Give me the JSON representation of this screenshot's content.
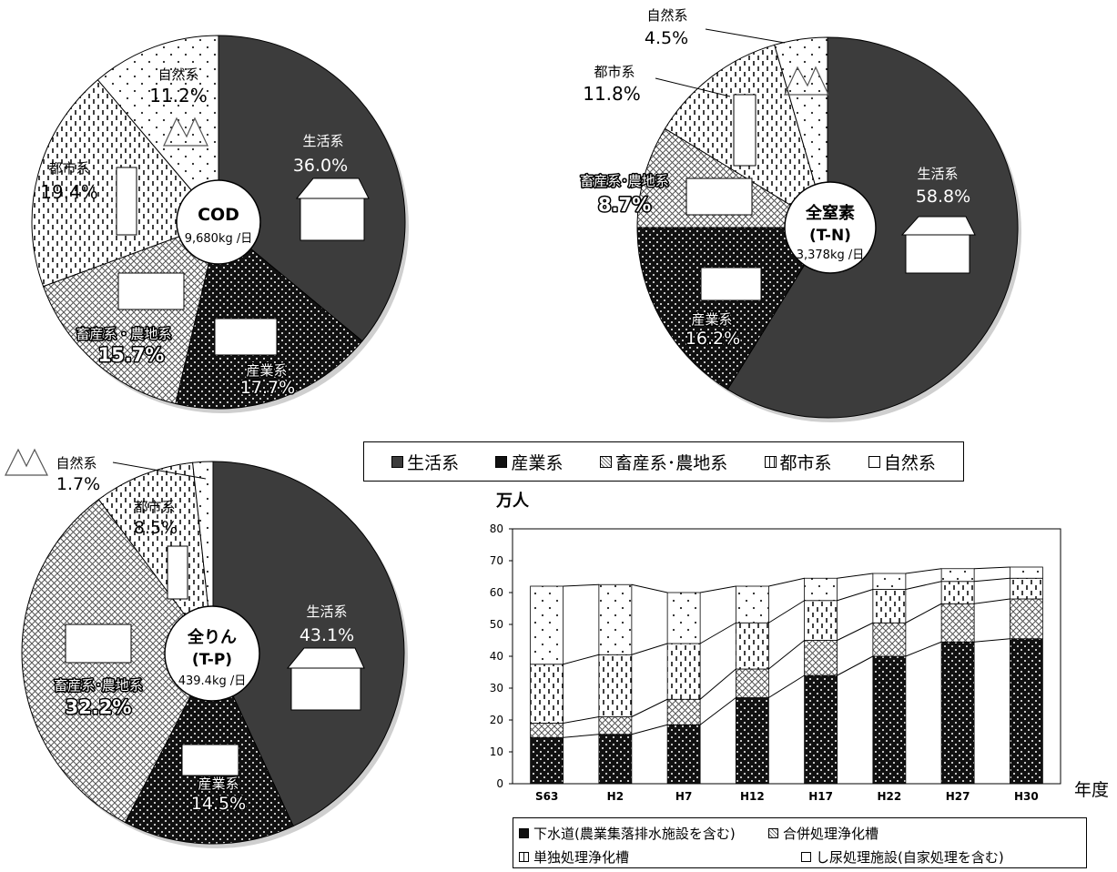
{
  "legend": {
    "items": [
      {
        "label": "生活系",
        "key": "seikatsu"
      },
      {
        "label": "産業系",
        "key": "sangyo"
      },
      {
        "label": "畜産系･農地系",
        "key": "chikusan"
      },
      {
        "label": "都市系",
        "key": "toshi"
      },
      {
        "label": "自然系",
        "key": "shizen"
      }
    ]
  },
  "chart_data": [
    {
      "type": "pie",
      "title": "COD",
      "subtitle": "9,680kg /日",
      "slices": [
        {
          "label": "生活系",
          "value": 36.0,
          "text": "36.0%"
        },
        {
          "label": "産業系",
          "value": 17.7,
          "text": "17.7%"
        },
        {
          "label": "畜産系・農地系",
          "value": 15.7,
          "text": "15.7%"
        },
        {
          "label": "都市系",
          "value": 19.4,
          "text": "19.4%"
        },
        {
          "label": "自然系",
          "value": 11.2,
          "text": "11.2%"
        }
      ]
    },
    {
      "type": "pie",
      "title": "全窒素",
      "title2": "(T-N)",
      "subtitle": "3,378kg /日",
      "slices": [
        {
          "label": "生活系",
          "value": 58.8,
          "text": "58.8%"
        },
        {
          "label": "産業系",
          "value": 16.2,
          "text": "16.2%"
        },
        {
          "label": "畜産系･農地系",
          "value": 8.7,
          "text": "8.7%"
        },
        {
          "label": "都市系",
          "value": 11.8,
          "text": "11.8%"
        },
        {
          "label": "自然系",
          "value": 4.5,
          "text": "4.5%"
        }
      ]
    },
    {
      "type": "pie",
      "title": "全りん",
      "title2": "(T-P)",
      "subtitle": "439.4kg /日",
      "slices": [
        {
          "label": "生活系",
          "value": 43.1,
          "text": "43.1%"
        },
        {
          "label": "産業系",
          "value": 14.5,
          "text": "14.5%"
        },
        {
          "label": "畜産系･農地系",
          "value": 32.2,
          "text": "32.2%"
        },
        {
          "label": "都市系",
          "value": 8.5,
          "text": "8.5%"
        },
        {
          "label": "自然系",
          "value": 1.7,
          "text": "1.7%"
        }
      ]
    },
    {
      "type": "bar",
      "stacked": true,
      "ylabel": "万人",
      "xlabel": "年度",
      "ylim": [
        0,
        80
      ],
      "yticks": [
        0,
        10,
        20,
        30,
        40,
        50,
        60,
        70,
        80
      ],
      "categories": [
        "S63",
        "H2",
        "H7",
        "H12",
        "H17",
        "H22",
        "H27",
        "H30"
      ],
      "series": [
        {
          "name": "下水道(農業集落排水施設を含む)",
          "values": [
            14.5,
            15.5,
            18.5,
            27.0,
            34.0,
            40.0,
            44.5,
            45.5
          ]
        },
        {
          "name": "合併処理浄化槽",
          "values": [
            4.5,
            5.5,
            8.0,
            9.0,
            11.0,
            10.5,
            12.0,
            12.5
          ]
        },
        {
          "name": "単独処理浄化槽",
          "values": [
            18.5,
            19.5,
            17.5,
            14.5,
            12.5,
            10.5,
            7.0,
            6.5
          ]
        },
        {
          "name": "し尿処理施設(自家処理を含む)",
          "values": [
            24.5,
            22.0,
            16.0,
            11.5,
            7.0,
            5.0,
            4.0,
            3.5
          ]
        }
      ]
    }
  ],
  "bar_legend": [
    "下水道(農業集落排水施設を含む)",
    "合併処理浄化槽",
    "単独処理浄化槽",
    "し尿処理施設(自家処理を含む)"
  ],
  "colors": {
    "dark": "#3c3c3c",
    "black": "#111111"
  }
}
